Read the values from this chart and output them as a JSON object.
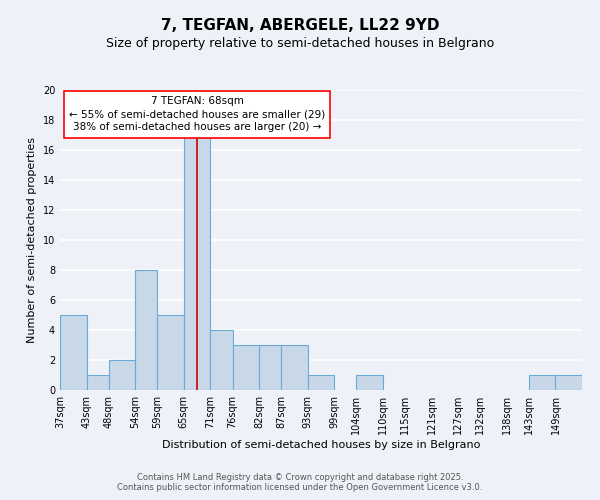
{
  "title": "7, TEGFAN, ABERGELE, LL22 9YD",
  "subtitle": "Size of property relative to semi-detached houses in Belgrano",
  "xlabel": "Distribution of semi-detached houses by size in Belgrano",
  "ylabel": "Number of semi-detached properties",
  "bin_labels": [
    "37sqm",
    "43sqm",
    "48sqm",
    "54sqm",
    "59sqm",
    "65sqm",
    "71sqm",
    "76sqm",
    "82sqm",
    "87sqm",
    "93sqm",
    "99sqm",
    "104sqm",
    "110sqm",
    "115sqm",
    "121sqm",
    "127sqm",
    "132sqm",
    "138sqm",
    "143sqm",
    "149sqm"
  ],
  "bin_edges": [
    37,
    43,
    48,
    54,
    59,
    65,
    71,
    76,
    82,
    87,
    93,
    99,
    104,
    110,
    115,
    121,
    127,
    132,
    138,
    143,
    149,
    155
  ],
  "bar_heights": [
    5,
    1,
    2,
    8,
    5,
    17,
    4,
    3,
    3,
    3,
    1,
    0,
    1,
    0,
    0,
    0,
    0,
    0,
    0,
    1,
    1
  ],
  "bar_color": "#c8d8e8",
  "bar_edge_color": "#6aaad4",
  "vline_color": "#cc0000",
  "vline_x": 68,
  "annotation_line1": "7 TEGFAN: 68sqm",
  "annotation_line2": "← 55% of semi-detached houses are smaller (29)",
  "annotation_line3": "38% of semi-detached houses are larger (20) →",
  "ylim": [
    0,
    20
  ],
  "yticks": [
    0,
    2,
    4,
    6,
    8,
    10,
    12,
    14,
    16,
    18,
    20
  ],
  "bg_color": "#eef2f8",
  "grid_color": "#ffffff",
  "footer1": "Contains HM Land Registry data © Crown copyright and database right 2025.",
  "footer2": "Contains public sector information licensed under the Open Government Licence v3.0.",
  "title_fontsize": 11,
  "subtitle_fontsize": 9,
  "axis_label_fontsize": 8,
  "tick_fontsize": 7,
  "annotation_fontsize": 7.5,
  "footer_fontsize": 6
}
